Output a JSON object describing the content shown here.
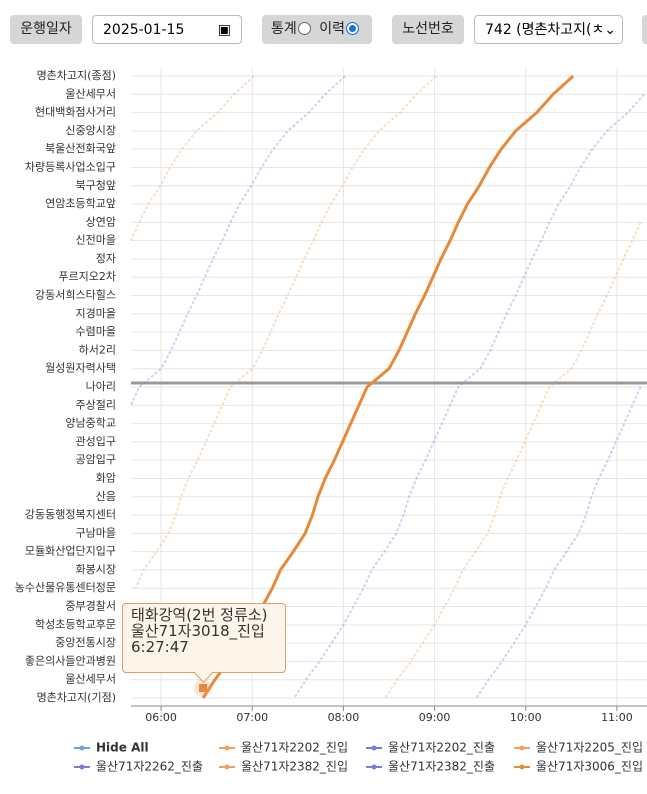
{
  "header": {
    "date_button": "운행일자",
    "date": "2025-01-15",
    "stats_label": "통계",
    "history_label": "이력",
    "route_button": "노선번호",
    "route": "742 (명촌차고지(ㅊ"
  },
  "chart_data": {
    "type": "line",
    "categories": [
      "명촌차고지(종점)",
      "울산세무서",
      "현대백화점사거리",
      "신중앙시장",
      "북울산전화국앞",
      "차량등록사업소입구",
      "북구청앞",
      "연암초등학교앞",
      "상연암",
      "신전마을",
      "정자",
      "푸르지오2차",
      "강동서희스타힐스",
      "지경마을",
      "수렴마을",
      "하서2리",
      "월성원자력사택",
      "나아리",
      "주상절리",
      "양남중학교",
      "관성입구",
      "공암입구",
      "화암",
      "산음",
      "강동동행정복지센터",
      "구남마을",
      "모듈화산업단지입구",
      "화봉시장",
      "농수산물유통센터정문",
      "중부경찰서",
      "학성초등학교후문",
      "중앙전통시장",
      "좋은의사들안과병원",
      "울산세무서",
      "명촌차고지(기점)"
    ],
    "xlim": [
      5.67,
      11.33
    ],
    "xticks": [
      {
        "value": 6,
        "label": "06:00"
      },
      {
        "value": 7,
        "label": "07:00"
      },
      {
        "value": 8,
        "label": "08:00"
      },
      {
        "value": 9,
        "label": "09:00"
      },
      {
        "value": 10,
        "label": "10:00"
      },
      {
        "value": 11,
        "label": "11:00"
      }
    ],
    "grid": true,
    "legend_control": "Hide All",
    "series": [
      {
        "name": "울산71자2202_진입",
        "color": "#f0a060",
        "values": [
          7.02,
          6.8,
          6.62,
          6.39,
          6.23,
          6.1,
          5.99,
          5.86,
          5.76,
          5.67,
          null,
          null,
          null,
          null,
          null,
          null,
          null,
          null,
          null,
          null,
          null,
          null,
          null,
          null,
          null,
          null,
          null,
          null,
          null,
          null,
          null,
          null,
          null,
          null,
          null
        ]
      },
      {
        "name": "울산71자2202_진출",
        "color": "#7a7ad8",
        "values": [
          8.02,
          7.8,
          7.62,
          7.39,
          7.23,
          7.1,
          6.99,
          6.86,
          6.76,
          6.67,
          6.57,
          6.48,
          6.39,
          6.29,
          6.2,
          6.11,
          6.0,
          5.76,
          5.67,
          null,
          null,
          null,
          null,
          null,
          null,
          null,
          null,
          null,
          null,
          null,
          null,
          null,
          null,
          null,
          null
        ]
      },
      {
        "name": "울산71자2205_진입",
        "color": "#f0a060",
        "values": [
          9.02,
          8.8,
          8.62,
          8.39,
          8.23,
          8.1,
          7.99,
          7.86,
          7.76,
          7.67,
          7.57,
          7.48,
          7.39,
          7.29,
          7.2,
          7.11,
          7.0,
          6.76,
          6.67,
          6.58,
          6.49,
          6.4,
          6.3,
          6.22,
          6.16,
          6.08,
          5.95,
          5.81,
          5.72,
          null,
          null,
          null,
          null,
          null,
          null
        ]
      },
      {
        "name": "울산71자2262_진출",
        "color": "#7a7ad8",
        "values": [
          null,
          11.3,
          11.12,
          10.89,
          10.73,
          10.6,
          10.49,
          10.36,
          10.26,
          10.17,
          10.07,
          9.98,
          9.89,
          9.79,
          9.7,
          9.61,
          9.5,
          9.26,
          9.17,
          9.08,
          8.99,
          8.9,
          8.8,
          8.72,
          8.66,
          8.58,
          8.45,
          8.31,
          8.22,
          8.11,
          8.0,
          7.87,
          7.74,
          7.59,
          7.46
        ]
      },
      {
        "name": "울산71자2382_진입",
        "color": "#f0a060",
        "values": [
          null,
          null,
          null,
          null,
          null,
          null,
          null,
          null,
          11.26,
          11.17,
          11.07,
          10.98,
          10.89,
          10.79,
          10.7,
          10.61,
          10.5,
          10.26,
          10.17,
          10.08,
          9.99,
          9.9,
          9.8,
          9.72,
          9.66,
          9.58,
          9.45,
          9.31,
          9.22,
          9.11,
          9.0,
          8.87,
          8.74,
          8.59,
          8.46
        ]
      },
      {
        "name": "울산71자2382_진출",
        "color": "#7a7ad8",
        "values": [
          null,
          null,
          null,
          null,
          null,
          null,
          null,
          null,
          null,
          null,
          null,
          null,
          null,
          null,
          null,
          null,
          null,
          11.26,
          11.17,
          11.08,
          10.99,
          10.9,
          10.8,
          10.72,
          10.66,
          10.58,
          10.45,
          10.31,
          10.22,
          10.11,
          10.0,
          9.87,
          9.74,
          9.59,
          9.46
        ]
      },
      {
        "name": "울산71자3006_진입",
        "color": "#e8893a",
        "values": [
          10.52,
          10.3,
          10.12,
          9.89,
          9.73,
          9.6,
          9.49,
          9.36,
          9.26,
          9.17,
          9.07,
          8.98,
          8.89,
          8.79,
          8.7,
          8.61,
          8.5,
          8.26,
          8.17,
          8.08,
          7.99,
          7.9,
          7.8,
          7.72,
          7.66,
          7.58,
          7.45,
          7.31,
          7.22,
          7.11,
          7.0,
          6.87,
          6.74,
          6.59,
          6.46
        ]
      }
    ],
    "tooltip": {
      "stop": "태화강역(2번 정류소)",
      "vehicle": "울산71자3018_진입",
      "time": "6:27:47"
    }
  }
}
